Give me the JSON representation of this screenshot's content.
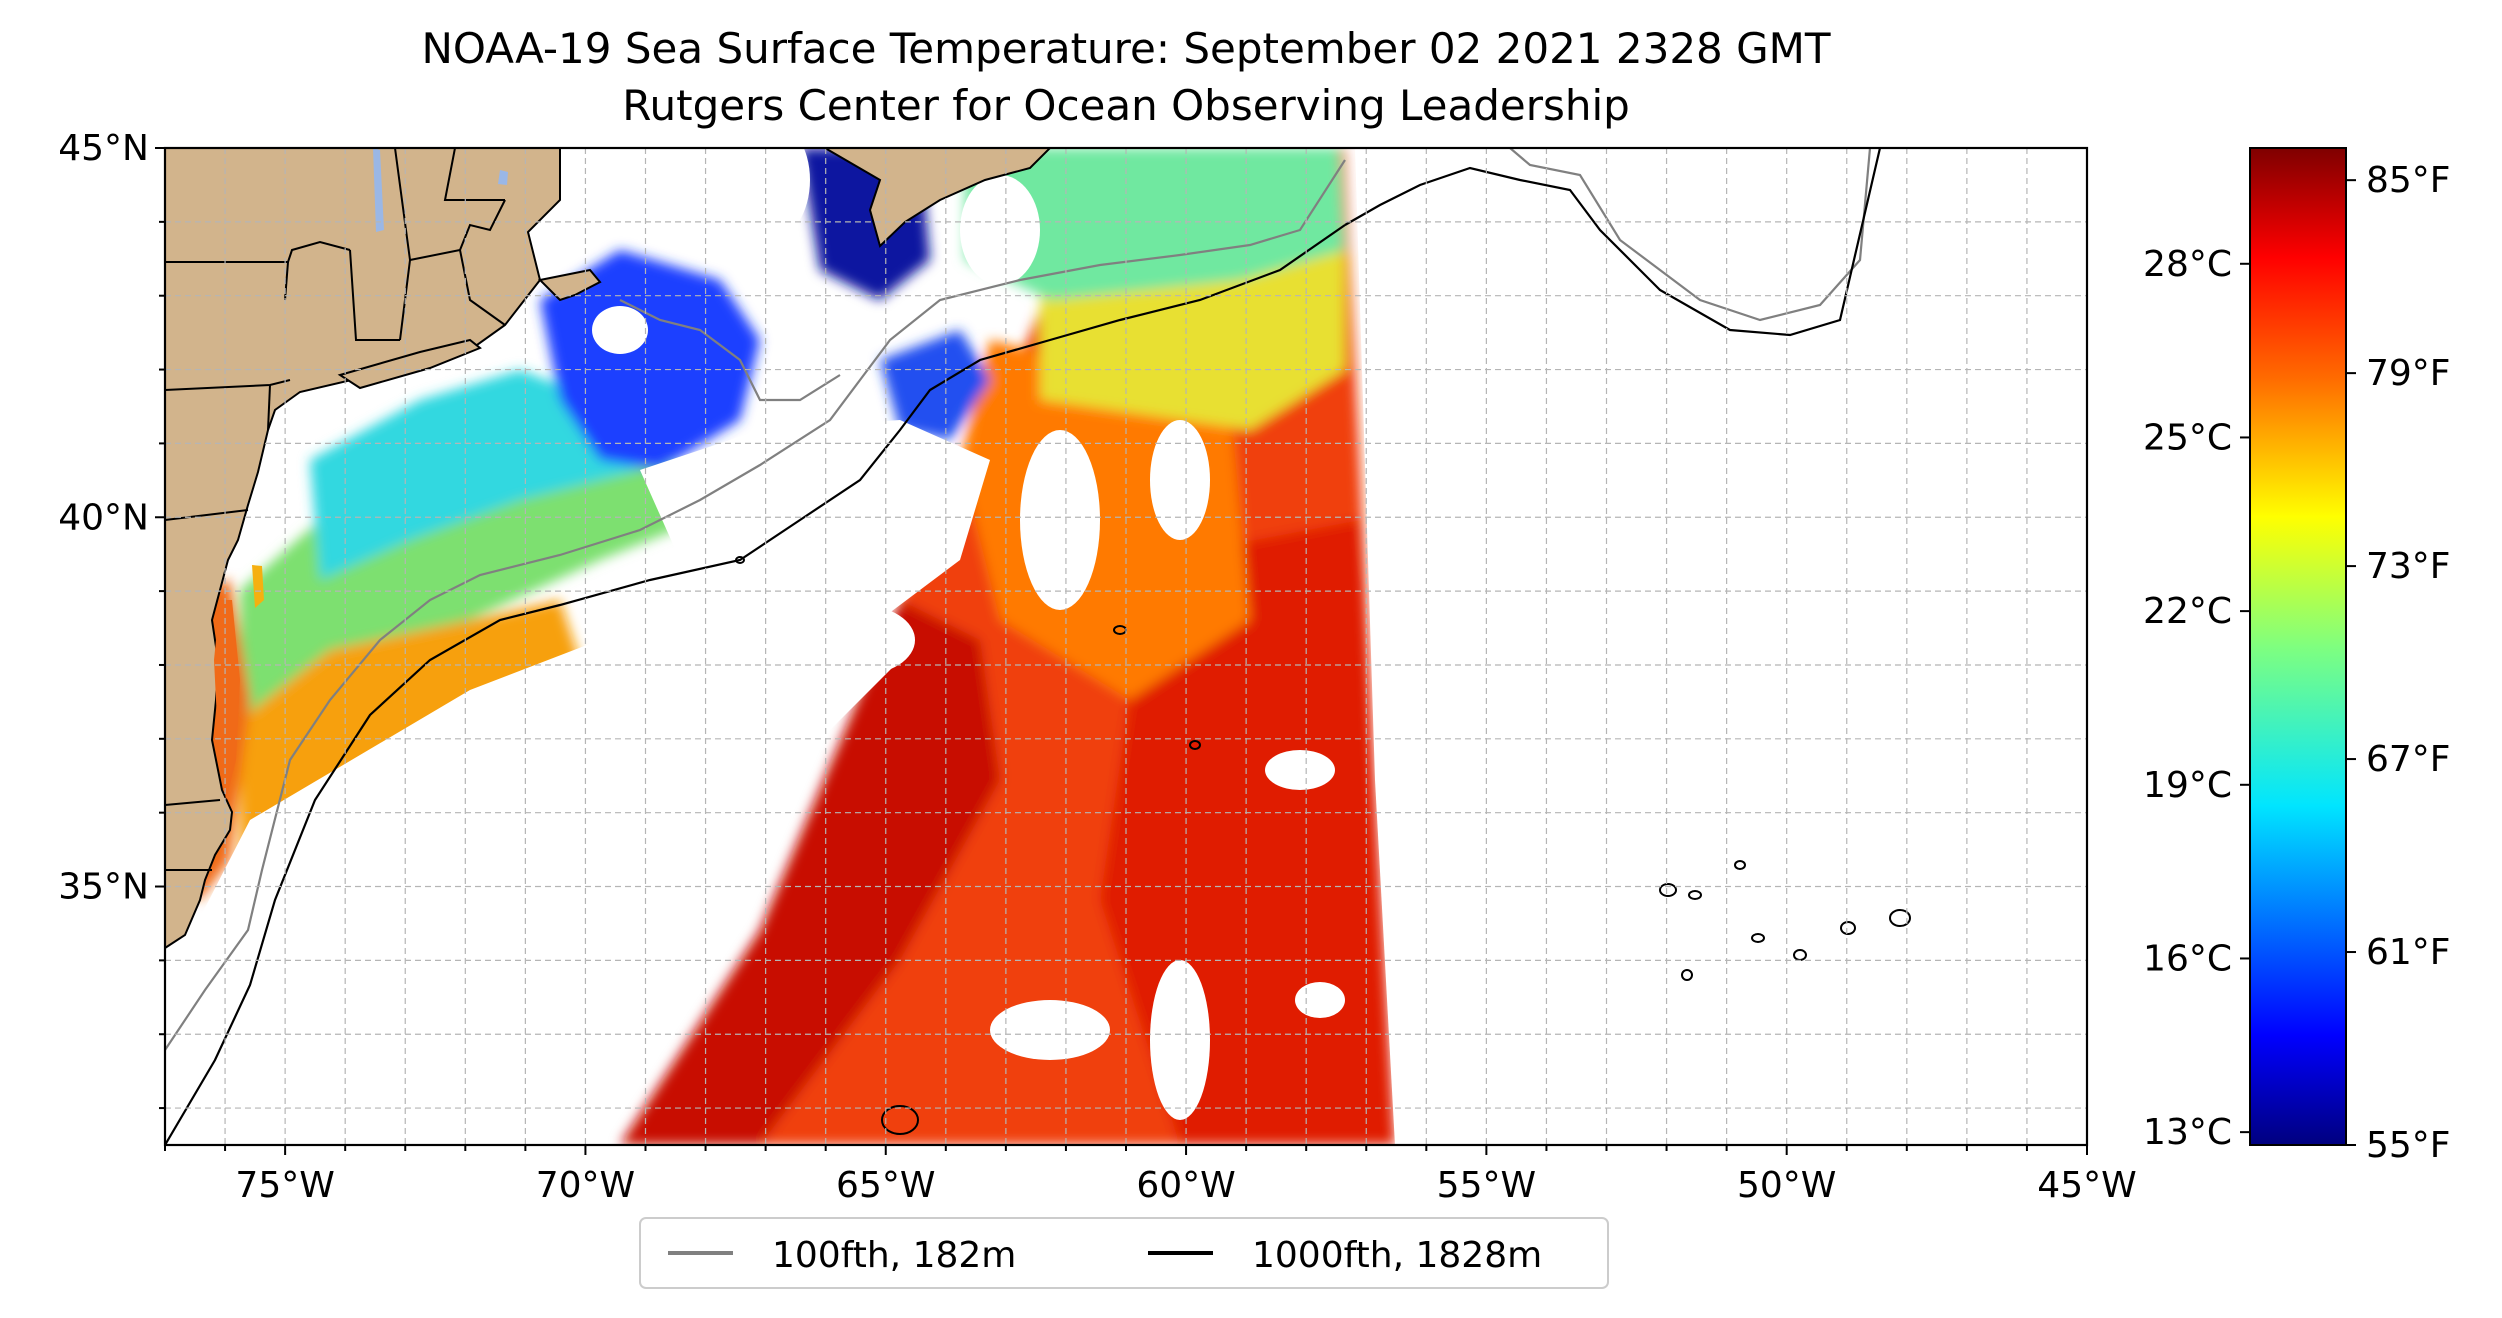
{
  "title": {
    "line1": "NOAA-19 Sea Surface Temperature: September 02 2021 2328 GMT",
    "line2": "Rutgers Center for Ocean Observing Leadership"
  },
  "map": {
    "lon_range": [
      -77,
      -45
    ],
    "lat_range": [
      31.5,
      45
    ],
    "lon_ticks": [
      "75°W",
      "70°W",
      "65°W",
      "60°W",
      "55°W",
      "50°W",
      "45°W"
    ],
    "lat_ticks": [
      "35°N",
      "40°N",
      "45°N"
    ],
    "gridlines": true,
    "colors": {
      "land": "#d2b48c",
      "lakes": "#9ab7e6",
      "no_data": "#ffffff",
      "isobath_100fth": "#808080",
      "isobath_1000fth": "#000000",
      "coast": "#000000"
    }
  },
  "colorbar": {
    "colormap": "jet",
    "celsius_labels": [
      "13°C",
      "16°C",
      "19°C",
      "22°C",
      "25°C",
      "28°C"
    ],
    "fahrenheit_labels": [
      "55°F",
      "61°F",
      "67°F",
      "73°F",
      "79°F",
      "85°F"
    ],
    "celsius_values": [
      13,
      16,
      19,
      22,
      25,
      28
    ],
    "fahrenheit_values": [
      55,
      61,
      67,
      73,
      79,
      85
    ],
    "range_f": [
      55,
      86
    ],
    "stops": [
      "#00007f",
      "#0000ff",
      "#007fff",
      "#00ffff",
      "#7fff7f",
      "#ffff00",
      "#ff7f00",
      "#ff0000",
      "#7f0000"
    ]
  },
  "legend": {
    "placement": "below-map",
    "items": [
      {
        "label": "100fth, 182m",
        "color": "#808080"
      },
      {
        "label": "1000fth, 1828m",
        "color": "#000000"
      }
    ]
  }
}
